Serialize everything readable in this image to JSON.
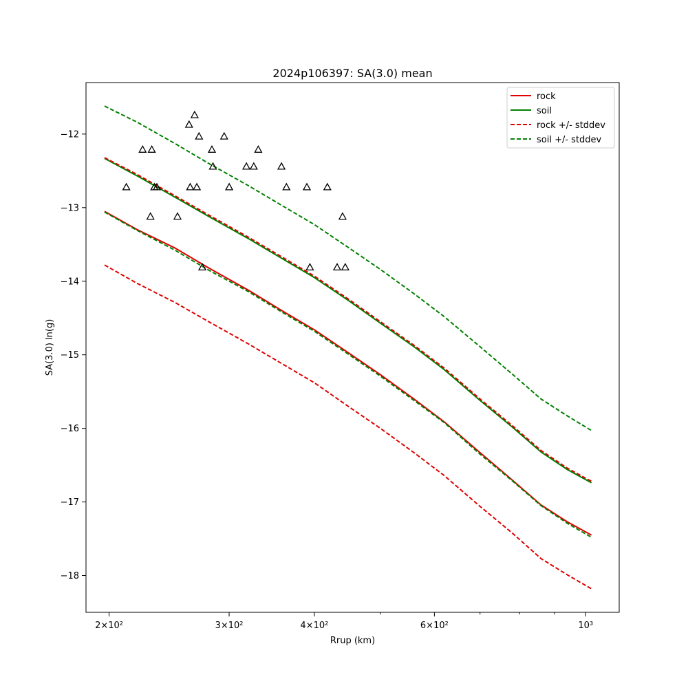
{
  "chart_data": {
    "type": "line",
    "title": "2024p106397: SA(3.0) mean",
    "xlabel": "Rrup (km)",
    "ylabel": "SA(3.0) ln(g)",
    "xscale": "log",
    "xlim": [
      185,
      1120
    ],
    "ylim": [
      -18.5,
      -11.3
    ],
    "x_ticks": [
      {
        "value": 200,
        "label": "2×10²"
      },
      {
        "value": 300,
        "label": "3×10²"
      },
      {
        "value": 400,
        "label": "4×10²"
      },
      {
        "value": 600,
        "label": "6×10²"
      },
      {
        "value": 1000,
        "label": "10³"
      }
    ],
    "x_minor_ticks": [
      500,
      700,
      800,
      900
    ],
    "y_ticks": [
      -12,
      -13,
      -14,
      -15,
      -16,
      -17,
      -18
    ],
    "y_tick_labels": [
      "−12",
      "−13",
      "−14",
      "−15",
      "−16",
      "−17",
      "−18"
    ],
    "grid": false,
    "legend_position": "top-right",
    "legend": [
      {
        "label": "rock",
        "color": "#e00000",
        "dash": "solid"
      },
      {
        "label": "soil",
        "color": "#008000",
        "dash": "solid"
      },
      {
        "label": "rock +/- stddev",
        "color": "#e00000",
        "dash": "dashed"
      },
      {
        "label": "soil +/- stddev",
        "color": "#008000",
        "dash": "dashed"
      }
    ],
    "x": [
      197,
      220,
      250,
      280,
      320,
      360,
      400,
      450,
      500,
      560,
      620,
      700,
      780,
      860,
      940,
      1020
    ],
    "series": [
      {
        "name": "rock",
        "color": "#e00000",
        "dash": "solid",
        "band": "mean",
        "values": [
          -13.05,
          -13.3,
          -13.55,
          -13.82,
          -14.12,
          -14.41,
          -14.66,
          -14.98,
          -15.27,
          -15.6,
          -15.91,
          -16.33,
          -16.7,
          -17.04,
          -17.27,
          -17.45
        ]
      },
      {
        "name": "soil",
        "color": "#008000",
        "dash": "solid",
        "band": "mean",
        "values": [
          -12.33,
          -12.57,
          -12.86,
          -13.12,
          -13.42,
          -13.7,
          -13.95,
          -14.27,
          -14.57,
          -14.89,
          -15.2,
          -15.62,
          -15.98,
          -16.32,
          -16.56,
          -16.74
        ]
      },
      {
        "name": "rock +/- stddev",
        "color": "#e00000",
        "dash": "dashed",
        "band": "upper",
        "values": [
          -12.32,
          -12.55,
          -12.84,
          -13.1,
          -13.4,
          -13.68,
          -13.93,
          -14.25,
          -14.55,
          -14.87,
          -15.18,
          -15.6,
          -15.96,
          -16.3,
          -16.54,
          -16.72
        ]
      },
      {
        "name": "rock +/- stddev",
        "color": "#e00000",
        "dash": "dashed",
        "band": "lower",
        "values": [
          -13.78,
          -14.03,
          -14.29,
          -14.55,
          -14.85,
          -15.13,
          -15.38,
          -15.71,
          -16.0,
          -16.33,
          -16.64,
          -17.06,
          -17.42,
          -17.77,
          -17.99,
          -18.18
        ]
      },
      {
        "name": "soil +/- stddev",
        "color": "#008000",
        "dash": "dashed",
        "band": "upper",
        "values": [
          -11.62,
          -11.84,
          -12.13,
          -12.4,
          -12.7,
          -12.98,
          -13.23,
          -13.55,
          -13.84,
          -14.17,
          -14.48,
          -14.89,
          -15.26,
          -15.6,
          -15.83,
          -16.03
        ]
      },
      {
        "name": "soil +/- stddev",
        "color": "#008000",
        "dash": "dashed",
        "band": "lower",
        "values": [
          -13.06,
          -13.31,
          -13.58,
          -13.85,
          -14.14,
          -14.43,
          -14.68,
          -15.0,
          -15.29,
          -15.62,
          -15.92,
          -16.35,
          -16.71,
          -17.05,
          -17.29,
          -17.48
        ]
      }
    ],
    "observations": {
      "marker": "triangle-open",
      "color": "#000000",
      "points": [
        {
          "x": 212,
          "y": -12.72
        },
        {
          "x": 224,
          "y": -12.21
        },
        {
          "x": 230,
          "y": -13.12
        },
        {
          "x": 231,
          "y": -12.21
        },
        {
          "x": 233,
          "y": -12.72
        },
        {
          "x": 235,
          "y": -12.72
        },
        {
          "x": 252,
          "y": -13.12
        },
        {
          "x": 262,
          "y": -11.87
        },
        {
          "x": 263,
          "y": -12.72
        },
        {
          "x": 267,
          "y": -11.74
        },
        {
          "x": 269,
          "y": -12.72
        },
        {
          "x": 271,
          "y": -12.03
        },
        {
          "x": 274,
          "y": -13.81
        },
        {
          "x": 283,
          "y": -12.21
        },
        {
          "x": 284,
          "y": -12.44
        },
        {
          "x": 295,
          "y": -12.03
        },
        {
          "x": 300,
          "y": -12.72
        },
        {
          "x": 318,
          "y": -12.44
        },
        {
          "x": 326,
          "y": -12.44
        },
        {
          "x": 331,
          "y": -12.21
        },
        {
          "x": 358,
          "y": -12.44
        },
        {
          "x": 364,
          "y": -12.72
        },
        {
          "x": 390,
          "y": -12.72
        },
        {
          "x": 394,
          "y": -13.81
        },
        {
          "x": 418,
          "y": -12.72
        },
        {
          "x": 432,
          "y": -13.81
        },
        {
          "x": 440,
          "y": -13.12
        },
        {
          "x": 444,
          "y": -13.81
        }
      ]
    }
  }
}
